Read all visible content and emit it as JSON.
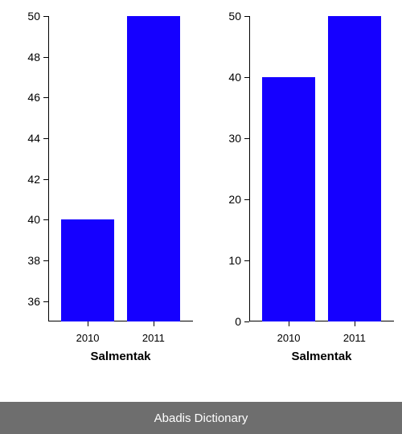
{
  "footer": {
    "text": "Abadis Dictionary",
    "bg": "#6e6e6e",
    "fg": "#ffffff"
  },
  "left_chart": {
    "type": "bar",
    "categories": [
      "2010",
      "2011"
    ],
    "values": [
      40,
      50
    ],
    "bar_colors": [
      "#1500ff",
      "#1500ff"
    ],
    "xlabel": "Salmentak",
    "ylim": [
      35,
      50
    ],
    "yticks": [
      36,
      38,
      40,
      42,
      44,
      46,
      48,
      50
    ],
    "bar_width": 0.8,
    "gap": 0.2,
    "label_fontsize": 14,
    "xlabel_fontsize": 15,
    "background_color": "#ffffff",
    "axis_color": "#000000"
  },
  "right_chart": {
    "type": "bar",
    "categories": [
      "2010",
      "2011"
    ],
    "values": [
      40,
      50
    ],
    "bar_colors": [
      "#1500ff",
      "#1500ff"
    ],
    "xlabel": "Salmentak",
    "ylim": [
      0,
      50
    ],
    "yticks": [
      0,
      10,
      20,
      30,
      40,
      50
    ],
    "bar_width": 0.8,
    "gap": 0.2,
    "label_fontsize": 14,
    "xlabel_fontsize": 15,
    "background_color": "#ffffff",
    "axis_color": "#000000"
  }
}
